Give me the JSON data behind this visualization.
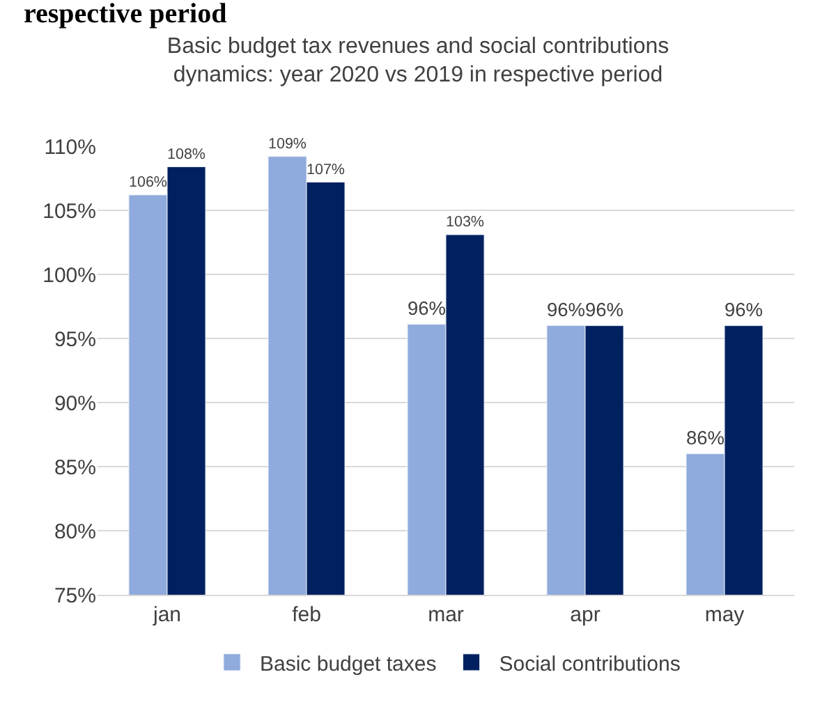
{
  "chart_data": {
    "type": "bar",
    "title": "Basic budget tax revenues and social contributions dynamics: year 2020 vs 2019 in respective period",
    "annotations": [
      "respective period"
    ],
    "categories": [
      "jan",
      "feb",
      "mar",
      "apr",
      "may"
    ],
    "series": [
      {
        "name": "Basic budget taxes",
        "color": "#8faadc",
        "values": [
          106.2,
          109.2,
          96.1,
          96,
          86
        ],
        "value_labels": [
          "106%",
          "109%",
          "96%",
          "96%",
          "86%"
        ]
      },
      {
        "name": "Social contributions",
        "color": "#002060",
        "values": [
          108.4,
          107.2,
          103.1,
          96,
          96
        ],
        "value_labels": [
          "108%",
          "107%",
          "103%",
          "96%",
          "96%"
        ]
      }
    ],
    "ylim": [
      75,
      110
    ],
    "yticks": [
      {
        "value": 75,
        "label": "75%"
      },
      {
        "value": 80,
        "label": "80%"
      },
      {
        "value": 85,
        "label": "85%"
      },
      {
        "value": 90,
        "label": "90%"
      },
      {
        "value": 95,
        "label": "95%"
      },
      {
        "value": 100,
        "label": "100%"
      },
      {
        "value": 105,
        "label": "105%"
      },
      {
        "value": 110,
        "label": "110%"
      }
    ],
    "grid": "y",
    "legend": "bottom"
  }
}
